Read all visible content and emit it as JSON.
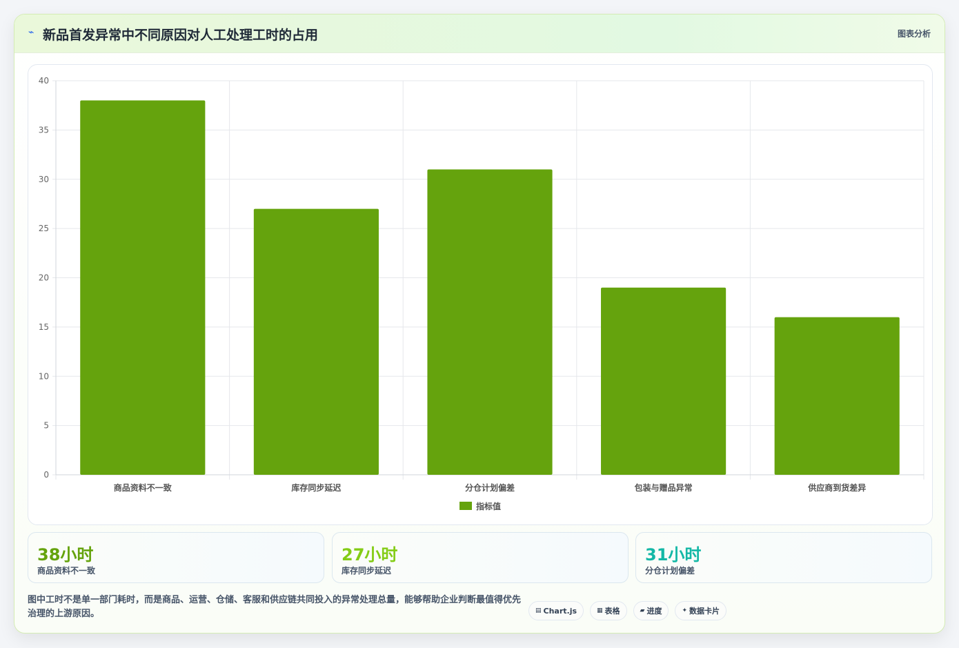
{
  "header": {
    "icon": "trend-icon",
    "title": "新品首发异常中不同原因对人工处理工时的占用",
    "tag": "图表分析"
  },
  "chart_data": {
    "type": "bar",
    "categories": [
      "商品资料不一致",
      "库存同步延迟",
      "分仓计划偏差",
      "包装与赠品异常",
      "供应商到货差异"
    ],
    "series": [
      {
        "name": "指标值",
        "values": [
          38,
          27,
          31,
          19,
          16
        ],
        "color": "#65a30d"
      }
    ],
    "ylim": [
      0,
      40
    ],
    "yticks": [
      0,
      5,
      10,
      15,
      20,
      25,
      30,
      35,
      40
    ],
    "grid": true,
    "legend": "bottom",
    "title": "",
    "xlabel": "",
    "ylabel": ""
  },
  "stats": [
    {
      "value": "38小时",
      "label": "商品资料不一致",
      "color": "#65a30d"
    },
    {
      "value": "27小时",
      "label": "库存同步延迟",
      "color": "#84cc16"
    },
    {
      "value": "31小时",
      "label": "分仓计划偏差",
      "color": "#14b8a6"
    }
  ],
  "note": "图中工时不是单一部门耗时，而是商品、运营、仓储、客服和供应链共同投入的异常处理总量，能够帮助企业判断最值得优先治理的上游原因。",
  "chips": [
    {
      "icon": "chart-icon",
      "glyph": "▤",
      "label": "Chart.js"
    },
    {
      "icon": "table-icon",
      "glyph": "▦",
      "label": "表格"
    },
    {
      "icon": "progress-icon",
      "glyph": "▰",
      "label": "进度"
    },
    {
      "icon": "card-icon",
      "glyph": "✦",
      "label": "数据卡片"
    }
  ]
}
